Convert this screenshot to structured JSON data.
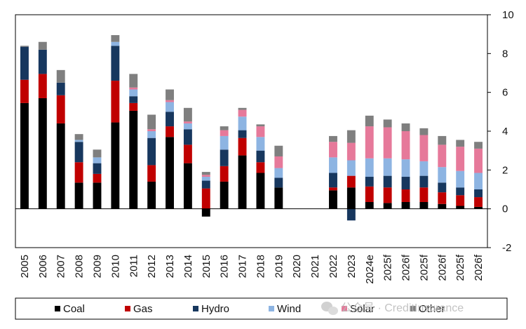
{
  "chart_data": {
    "type": "bar",
    "stacked": true,
    "categories": [
      "2005",
      "2006",
      "2007",
      "2008",
      "2009",
      "2010",
      "2011",
      "2012",
      "2013",
      "2014",
      "2015",
      "2016",
      "2017",
      "2018",
      "2019",
      "2020",
      "2021",
      "2022",
      "2023",
      "2024e",
      "2025f",
      "2026f",
      "2025f",
      "2026f",
      "2025f",
      "2026f"
    ],
    "series": [
      {
        "name": "Coal",
        "color": "#000000",
        "values": [
          5.45,
          5.7,
          4.4,
          1.35,
          1.35,
          4.45,
          5.05,
          1.4,
          3.7,
          2.35,
          -0.4,
          1.4,
          2.75,
          1.85,
          1.1,
          0,
          0,
          0.95,
          1.1,
          0.35,
          0.3,
          0.35,
          0.35,
          0.25,
          0.15,
          0.1
        ]
      },
      {
        "name": "Gas",
        "color": "#c00000",
        "values": [
          1.2,
          1.25,
          1.45,
          1.05,
          0.45,
          2.15,
          0.4,
          0.85,
          0.55,
          0.95,
          1.05,
          0.8,
          0.9,
          0.55,
          0,
          0,
          0,
          0.15,
          0.6,
          0.8,
          0.8,
          0.65,
          0.75,
          0.6,
          0.55,
          0.5
        ]
      },
      {
        "name": "Hydro",
        "color": "#17375e",
        "values": [
          1.7,
          1.25,
          0.65,
          1.05,
          0.55,
          1.8,
          0.35,
          1.4,
          0.75,
          0.8,
          0.4,
          0.85,
          0.4,
          0.6,
          0.5,
          0,
          0,
          0.75,
          -0.6,
          0.5,
          0.6,
          0.65,
          0.6,
          0.5,
          0.4,
          0.4
        ]
      },
      {
        "name": "Wind",
        "color": "#8db4e2",
        "values": [
          0,
          0,
          0,
          0.1,
          0.3,
          0.2,
          0.35,
          0.35,
          0.5,
          0.3,
          0.2,
          0.7,
          0.7,
          0.7,
          0.5,
          0,
          0,
          0.8,
          0.8,
          0.95,
          0.9,
          0.9,
          0.75,
          0.8,
          0.85,
          0.85
        ]
      },
      {
        "name": "Solar",
        "color": "#e6799a",
        "values": [
          0,
          0,
          0,
          0,
          0,
          0,
          0.1,
          0.1,
          0.1,
          0.1,
          0.1,
          0.3,
          0.35,
          0.55,
          0.6,
          0,
          0,
          0.8,
          0.9,
          1.65,
          1.6,
          1.45,
          1.35,
          1.15,
          1.25,
          1.25
        ]
      },
      {
        "name": "Other",
        "color": "#7f7f7f",
        "values": [
          0.05,
          0.4,
          0.65,
          0.3,
          0.4,
          0.35,
          0.7,
          0.75,
          0.55,
          0.7,
          0.15,
          0.2,
          0.1,
          0.1,
          0.55,
          0,
          0,
          0.3,
          0.65,
          0.55,
          0.4,
          0.4,
          0.35,
          0.45,
          0.35,
          0.35
        ]
      }
    ],
    "ylim": [
      -2,
      10
    ],
    "yticks": [
      -2,
      0,
      2,
      4,
      6,
      8,
      10
    ],
    "y_axis_side": "right",
    "grid": false,
    "legend_position": "bottom"
  },
  "watermark": {
    "text": "公众号 · CreditInsurance"
  }
}
